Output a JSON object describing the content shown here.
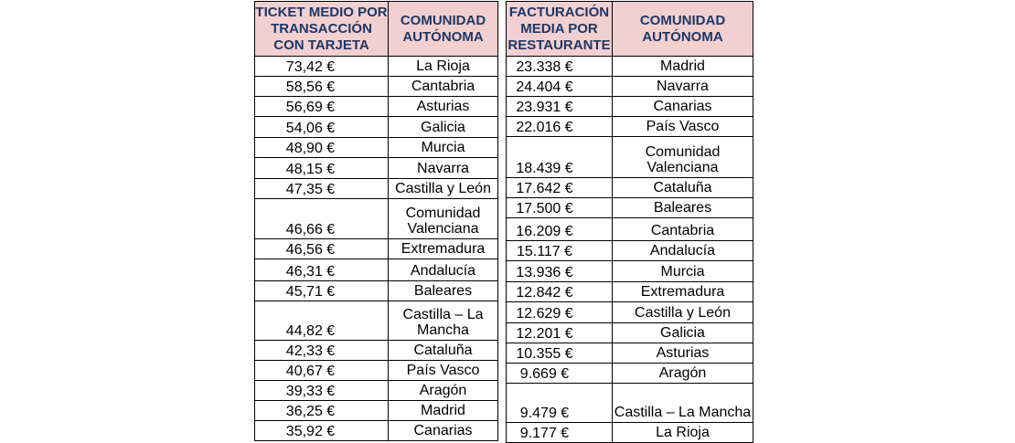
{
  "table_left": {
    "headers": [
      "TICKET MEDIO POR TRANSACCIÓN CON TARJETA",
      "COMUNIDAD AUTÓNOMA"
    ],
    "rows": [
      {
        "value": "73,42 €",
        "region": "La Rioja"
      },
      {
        "value": "58,56 €",
        "region": "Cantabria"
      },
      {
        "value": "56,69 €",
        "region": "Asturias"
      },
      {
        "value": "54,06 €",
        "region": "Galicia"
      },
      {
        "value": "48,90 €",
        "region": "Murcia"
      },
      {
        "value": "48,15 €",
        "region": "Navarra"
      },
      {
        "value": "47,35 €",
        "region": "Castilla y León"
      },
      {
        "value": "46,66 €",
        "region": "Comunidad Valenciana"
      },
      {
        "value": "46,56 €",
        "region": "Extremadura"
      },
      {
        "value": "46,31 €",
        "region": "Andalucía"
      },
      {
        "value": "45,71 €",
        "region": "Baleares"
      },
      {
        "value": "44,82 €",
        "region": "Castilla – La Mancha"
      },
      {
        "value": "42,33 €",
        "region": "Cataluña"
      },
      {
        "value": "40,67 €",
        "region": "País Vasco"
      },
      {
        "value": "39,33 €",
        "region": "Aragón"
      },
      {
        "value": "36,25 €",
        "region": "Madrid"
      },
      {
        "value": "35,92 €",
        "region": "Canarias"
      }
    ]
  },
  "table_right": {
    "headers": [
      "FACTURACIÓN MEDIA POR RESTAURANTE",
      "COMUNIDAD AUTÓNOMA"
    ],
    "rows": [
      {
        "value": "23.338 €",
        "region": "Madrid"
      },
      {
        "value": "24.404 €",
        "region": "Navarra"
      },
      {
        "value": "23.931 €",
        "region": "Canarias"
      },
      {
        "value": "22.016 €",
        "region": "País Vasco"
      },
      {
        "value": "18.439 €",
        "region": "Comunidad Valenciana"
      },
      {
        "value": "17.642 €",
        "region": "Cataluña"
      },
      {
        "value": "17.500 €",
        "region": "Baleares"
      },
      {
        "value": "16.209 €",
        "region": "Cantabria"
      },
      {
        "value": "15.117 €",
        "region": "Andalucía"
      },
      {
        "value": "13.936 €",
        "region": "Murcia"
      },
      {
        "value": "12.842 €",
        "region": "Extremadura"
      },
      {
        "value": "12.629 €",
        "region": "Castilla y León"
      },
      {
        "value": "12.201 €",
        "region": "Galicia"
      },
      {
        "value": "10.355 €",
        "region": "Asturias"
      },
      {
        "value": "9.669 €",
        "region": "Aragón"
      },
      {
        "value": "9.479 €",
        "region": "Castilla – La Mancha"
      },
      {
        "value": "9.177 €",
        "region": "La Rioja"
      }
    ]
  },
  "colors": {
    "header_bg": "#f2cfd1",
    "header_text": "#1f3864"
  }
}
